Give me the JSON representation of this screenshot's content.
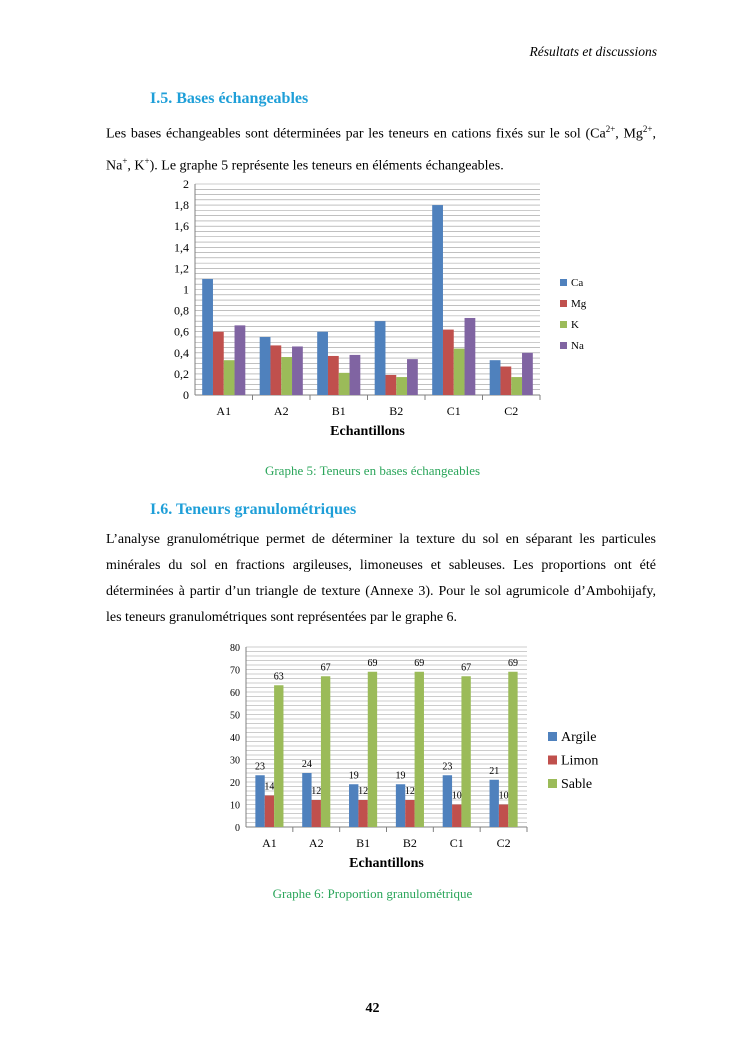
{
  "header": "Résultats et discussions",
  "section1": {
    "title": "I.5. Bases échangeables",
    "text_a": "Les bases échangeables sont déterminées par les teneurs en cations fixés sur le sol (Ca",
    "sup_ca": "2+",
    "text_b": ",",
    "text_c": "Mg",
    "sup_mg": "2+",
    "text_d": ", Na",
    "sup_na": "+",
    "text_e": ", K",
    "sup_k": "+",
    "text_f": "). Le graphe 5 représente les teneurs en éléments échangeables.",
    "caption": "Graphe 5: Teneurs en bases échangeables"
  },
  "section2": {
    "title": "I.6. Teneurs granulométriques",
    "text": "L’analyse granulométrique permet de déterminer la texture du sol en séparant les particules minérales du sol en fractions argileuses, limoneuses et sableuses. Les proportions ont été déterminées à partir d’un triangle de texture (Annexe 3). Pour le sol agrumicole d’Ambohijafy, les teneurs granulométriques sont représentées par le graphe 6.",
    "caption": "Graphe 6: Proportion granulométrique"
  },
  "page_number": "42",
  "chart_data": [
    {
      "type": "bar",
      "xlabel": "Echantillons",
      "ylabel": "",
      "ylim": [
        0,
        2
      ],
      "yticks": [
        "0",
        "0,2",
        "0,4",
        "0,6",
        "0,8",
        "1",
        "1,2",
        "1,4",
        "1,6",
        "1,8",
        "2"
      ],
      "grid": true,
      "legend": "right",
      "categories": [
        "A1",
        "A2",
        "B1",
        "B2",
        "C1",
        "C2"
      ],
      "series": [
        {
          "name": "Ca",
          "color": "#4f81bd",
          "values": [
            1.1,
            0.55,
            0.6,
            0.7,
            1.8,
            0.33
          ]
        },
        {
          "name": "Mg",
          "color": "#c0504d",
          "values": [
            0.6,
            0.47,
            0.37,
            0.19,
            0.62,
            0.27
          ]
        },
        {
          "name": "K",
          "color": "#9bbb59",
          "values": [
            0.33,
            0.36,
            0.21,
            0.17,
            0.44,
            0.17
          ]
        },
        {
          "name": "Na",
          "color": "#8064a2",
          "values": [
            0.66,
            0.46,
            0.38,
            0.34,
            0.73,
            0.4
          ]
        }
      ]
    },
    {
      "type": "bar",
      "xlabel": "Echantillons",
      "ylabel": "",
      "ylim": [
        0,
        80
      ],
      "yticks": [
        "0",
        "10",
        "20",
        "30",
        "40",
        "50",
        "60",
        "70",
        "80"
      ],
      "grid": true,
      "legend": "right",
      "data_labels": true,
      "categories": [
        "A1",
        "A2",
        "B1",
        "B2",
        "C1",
        "C2"
      ],
      "series": [
        {
          "name": "Argile",
          "color": "#4f81bd",
          "values": [
            23,
            24,
            19,
            19,
            23,
            21
          ]
        },
        {
          "name": "Limon",
          "color": "#c0504d",
          "values": [
            14,
            12,
            12,
            12,
            10,
            10
          ]
        },
        {
          "name": "Sable",
          "color": "#9bbb59",
          "values": [
            63,
            67,
            69,
            69,
            67,
            69
          ]
        }
      ]
    }
  ]
}
